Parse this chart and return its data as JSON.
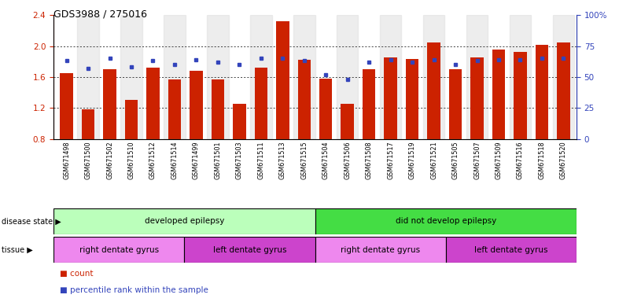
{
  "title": "GDS3988 / 275016",
  "samples": [
    "GSM671498",
    "GSM671500",
    "GSM671502",
    "GSM671510",
    "GSM671512",
    "GSM671514",
    "GSM671499",
    "GSM671501",
    "GSM671503",
    "GSM671511",
    "GSM671513",
    "GSM671515",
    "GSM671504",
    "GSM671506",
    "GSM671508",
    "GSM671517",
    "GSM671519",
    "GSM671521",
    "GSM671505",
    "GSM671507",
    "GSM671509",
    "GSM671516",
    "GSM671518",
    "GSM671520"
  ],
  "red_values": [
    1.65,
    1.18,
    1.7,
    1.3,
    1.72,
    1.57,
    1.68,
    1.57,
    1.25,
    1.72,
    2.32,
    1.82,
    1.58,
    1.25,
    1.7,
    1.85,
    1.83,
    2.05,
    1.7,
    1.85,
    1.95,
    1.92,
    2.02,
    2.05
  ],
  "blue_values": [
    63,
    57,
    65,
    58,
    63,
    60,
    64,
    62,
    60,
    65,
    65,
    63,
    52,
    48,
    62,
    64,
    62,
    64,
    60,
    63,
    64,
    64,
    65,
    65
  ],
  "ylim_left": [
    0.8,
    2.4
  ],
  "ylim_right": [
    0,
    100
  ],
  "yticks_left": [
    0.8,
    1.2,
    1.6,
    2.0,
    2.4
  ],
  "yticks_right": [
    0,
    25,
    50,
    75,
    100
  ],
  "ytick_labels_right": [
    "0",
    "25",
    "50",
    "75",
    "100%"
  ],
  "bar_color": "#cc2200",
  "blue_color": "#3344bb",
  "grid_color": "#000000",
  "disease_state_groups": [
    {
      "label": "developed epilepsy",
      "start": 0,
      "end": 12,
      "color": "#bbffbb"
    },
    {
      "label": "did not develop epilepsy",
      "start": 12,
      "end": 24,
      "color": "#44dd44"
    }
  ],
  "tissue_groups": [
    {
      "label": "right dentate gyrus",
      "start": 0,
      "end": 6,
      "color": "#ee88ee"
    },
    {
      "label": "left dentate gyrus",
      "start": 6,
      "end": 12,
      "color": "#cc44cc"
    },
    {
      "label": "right dentate gyrus",
      "start": 12,
      "end": 18,
      "color": "#ee88ee"
    },
    {
      "label": "left dentate gyrus",
      "start": 18,
      "end": 24,
      "color": "#cc44cc"
    }
  ],
  "legend_items": [
    {
      "label": "count",
      "color": "#cc2200"
    },
    {
      "label": "percentile rank within the sample",
      "color": "#3344bb"
    }
  ]
}
